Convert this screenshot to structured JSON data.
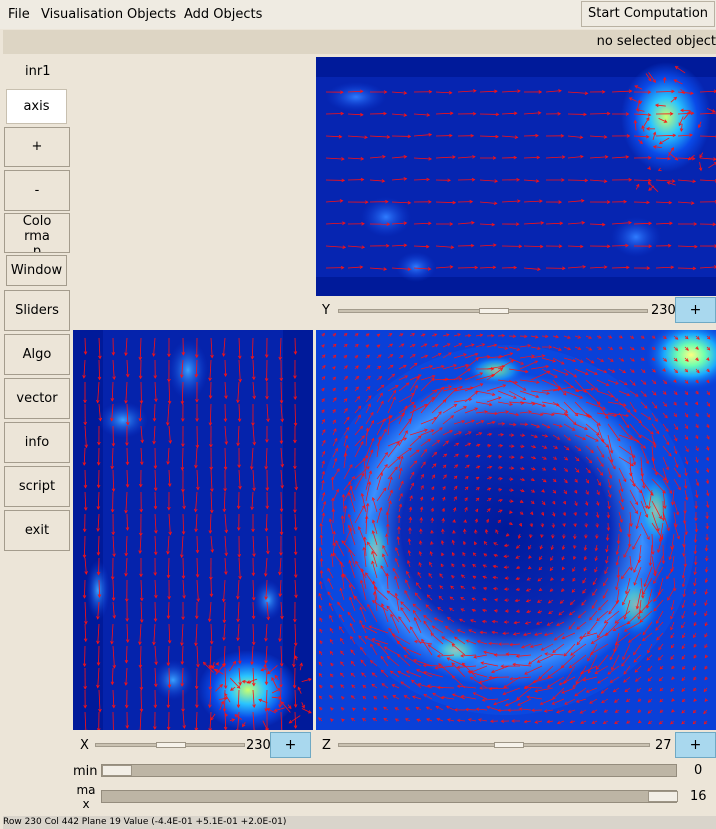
{
  "menu": {
    "file": "File",
    "visualisation": "Visualisation",
    "objects": "Objects",
    "add_objects": "Add Objects"
  },
  "start_button": "Start Computation",
  "status": "no selected object",
  "left_panel": {
    "object_name": "inr1",
    "axis": "axis",
    "zoom_in": "+",
    "zoom_out": "-",
    "colormap": "Colo rma p",
    "window": "Window",
    "sliders": "Sliders",
    "algo": "Algo",
    "vector": "vector",
    "info": "info",
    "script": "script",
    "exit": "exit"
  },
  "views": {
    "y": {
      "axis_label": "Y",
      "value": "230",
      "plus": "+",
      "slider_fraction": 0.5
    },
    "x": {
      "axis_label": "X",
      "value": "230",
      "plus": "+",
      "slider_fraction": 0.5
    },
    "z": {
      "axis_label": "Z",
      "value": "27",
      "plus": "+",
      "slider_fraction": 0.55
    }
  },
  "range": {
    "min_label": "min",
    "min_value": "0",
    "min_fraction": 0.0,
    "max_label": "ma x",
    "max_value": "16",
    "max_fraction": 1.0
  },
  "footer": "Row 230 Col 442 Plane 19 Value (-4.4E-01 +5.1E-01 +2.0E-01)",
  "colors": {
    "field_dark": "#00107a",
    "field_mid": "#0a36d6",
    "field_hot": "#b8ff60",
    "vector": "#ff1010",
    "plus_button": "#a9d8ee"
  }
}
